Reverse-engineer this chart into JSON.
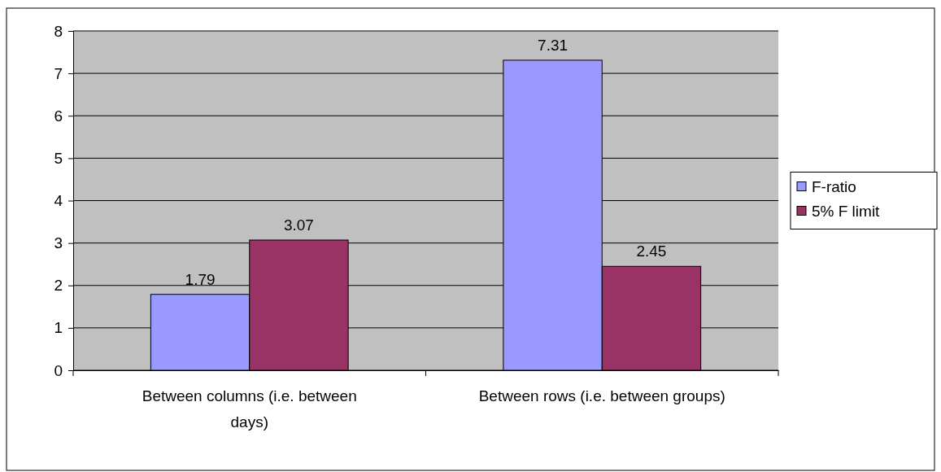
{
  "chart_data": {
    "type": "bar",
    "categories": [
      "Between columns (i.e. between days)",
      "Between rows (i.e. between groups)"
    ],
    "series": [
      {
        "name": "F-ratio",
        "color": "#9999ff",
        "values": [
          1.79,
          7.31
        ]
      },
      {
        "name": "5% F limit",
        "color": "#993366",
        "values": [
          3.07,
          2.45
        ]
      }
    ],
    "ylim": [
      0,
      8
    ],
    "yticks": [
      0,
      1,
      2,
      3,
      4,
      5,
      6,
      7,
      8
    ],
    "grid": "y",
    "legend": "right",
    "data_labels": true
  }
}
